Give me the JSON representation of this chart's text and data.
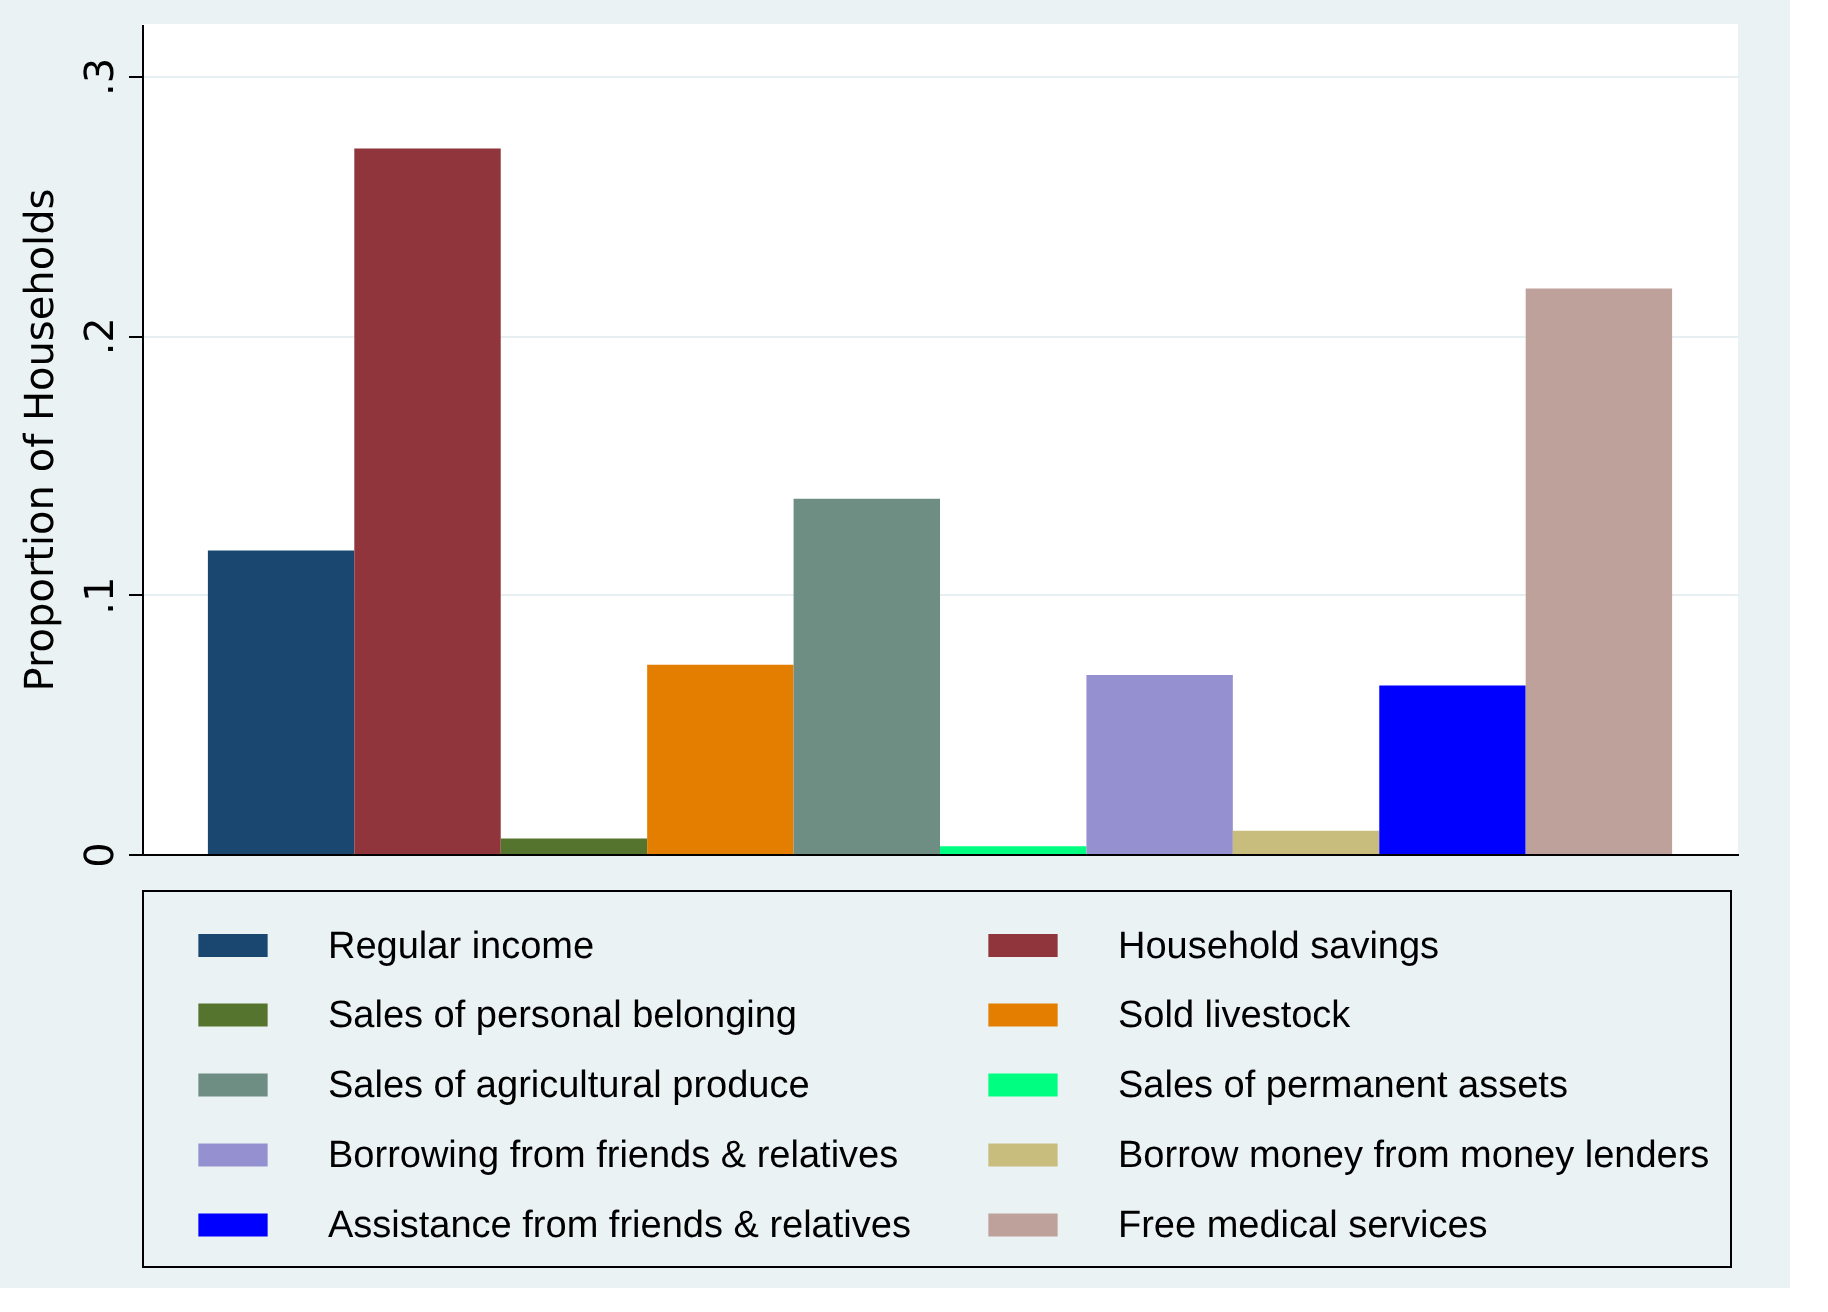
{
  "chart_data": {
    "type": "bar",
    "ylabel": "Proportion of Households",
    "categories": [
      null,
      null,
      null,
      null,
      null,
      null,
      null,
      null,
      null,
      null
    ],
    "series": [
      {
        "name": "Regular income",
        "color": "#1a476f",
        "values": [
          0.117,
          null,
          null,
          null,
          null,
          null,
          null,
          null,
          null,
          null
        ]
      },
      {
        "name": "Household savings",
        "color": "#90353b",
        "values": [
          null,
          0.272,
          null,
          null,
          null,
          null,
          null,
          null,
          null,
          null
        ]
      },
      {
        "name": "Sales of personal belonging",
        "color": "#55752f",
        "values": [
          null,
          null,
          0.006,
          null,
          null,
          null,
          null,
          null,
          null,
          null
        ]
      },
      {
        "name": "Sold livestock",
        "color": "#e37e00",
        "values": [
          null,
          null,
          null,
          0.073,
          null,
          null,
          null,
          null,
          null,
          null
        ]
      },
      {
        "name": "Sales of agricultural produce",
        "color": "#6e8e84",
        "values": [
          null,
          null,
          null,
          null,
          0.137,
          null,
          null,
          null,
          null,
          null
        ]
      },
      {
        "name": "Sales of permanent assets",
        "color": "#00ff80",
        "values": [
          null,
          null,
          null,
          null,
          null,
          0.003,
          null,
          null,
          null,
          null
        ]
      },
      {
        "name": "Borrowing from friends & relatives",
        "color": "#9591d0",
        "values": [
          null,
          null,
          null,
          null,
          null,
          null,
          0.069,
          null,
          null,
          null
        ]
      },
      {
        "name": "Borrow money from money lenders",
        "color": "#c9bd7e",
        "values": [
          null,
          null,
          null,
          null,
          null,
          null,
          null,
          0.009,
          null,
          null
        ]
      },
      {
        "name": "Assistance from friends & relatives",
        "color": "#0000ff",
        "values": [
          null,
          null,
          null,
          null,
          null,
          null,
          null,
          null,
          0.065,
          null
        ]
      },
      {
        "name": "Free medical services",
        "color": "#bfa19c",
        "values": [
          null,
          null,
          null,
          null,
          null,
          null,
          null,
          null,
          null,
          0.218
        ]
      }
    ],
    "ylim": [
      0,
      0.32
    ],
    "yticks": [
      0,
      {
        "value": 0.1,
        "label": ".1"
      },
      {
        "value": 0.2,
        "label": ".2"
      },
      {
        "value": 0.3,
        "label": ".3"
      }
    ],
    "grid": "y",
    "legend": "bottom"
  }
}
